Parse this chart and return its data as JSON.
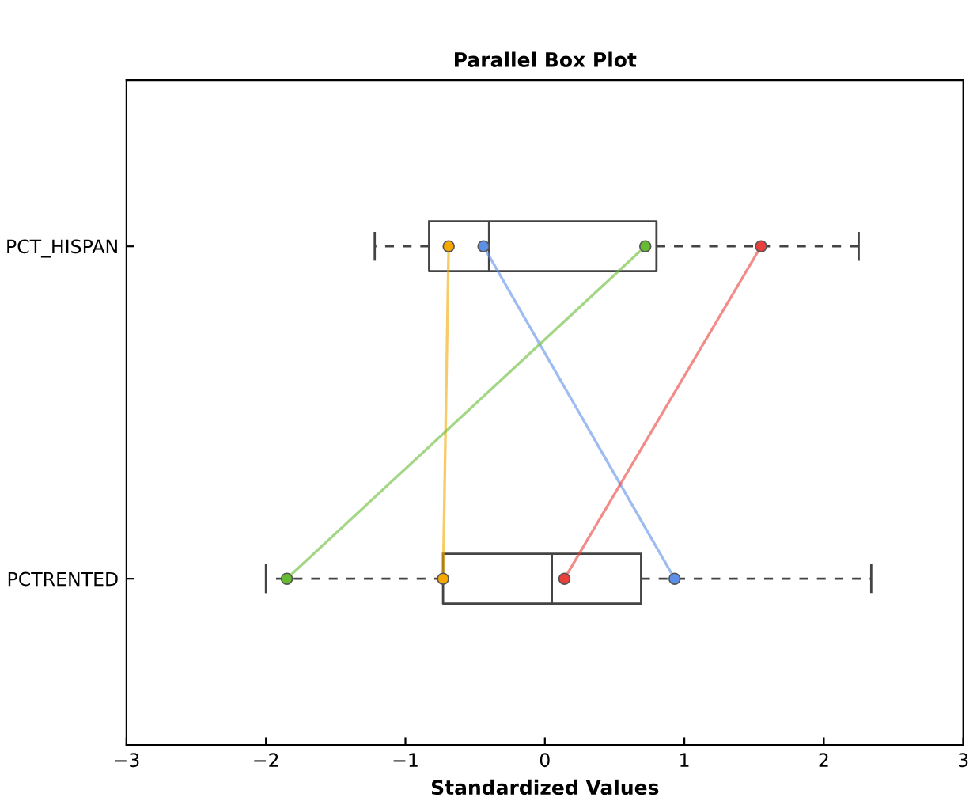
{
  "chart_data": {
    "type": "box",
    "title": "Parallel Box Plot",
    "xlabel": "Standardized Values",
    "orientation": "horizontal",
    "categories": [
      "PCT_HISPAN",
      "PCTRENTED"
    ],
    "boxes": [
      {
        "low": -1.22,
        "q1": -0.83,
        "median": -0.4,
        "q3": 0.8,
        "high": 2.25
      },
      {
        "low": -2.0,
        "q1": -0.73,
        "median": 0.05,
        "q3": 0.69,
        "high": 2.34
      }
    ],
    "series": [
      {
        "type": "line",
        "color": "#f5a800",
        "values": [
          -0.69,
          -0.73
        ]
      },
      {
        "type": "line",
        "color": "#5b8fe8",
        "values": [
          -0.44,
          0.93
        ]
      },
      {
        "type": "line",
        "color": "#66bb33",
        "values": [
          0.72,
          -1.85
        ]
      },
      {
        "type": "line",
        "color": "#e8403a",
        "values": [
          1.55,
          0.14
        ]
      }
    ],
    "marker": "circle",
    "xlim": [
      -3,
      3
    ],
    "xticks": [
      -3,
      -2,
      -1,
      0,
      1,
      2,
      3
    ],
    "grid": false,
    "legend": false
  }
}
